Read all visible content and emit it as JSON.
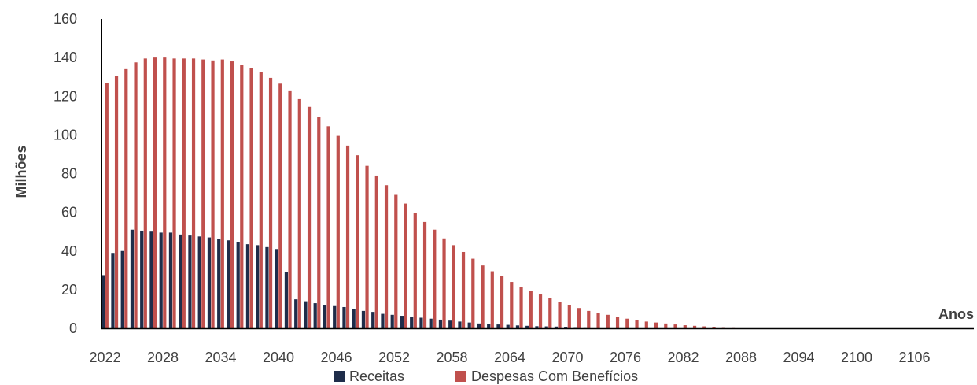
{
  "chart_data": {
    "type": "bar",
    "xlabel": "Anos",
    "ylabel": "Milhões",
    "ylim": [
      0,
      160
    ],
    "yticks": [
      0,
      20,
      40,
      60,
      80,
      100,
      120,
      140,
      160
    ],
    "x_tick_labels": [
      "2022",
      "2028",
      "2034",
      "2040",
      "2046",
      "2052",
      "2058",
      "2064",
      "2070",
      "2076",
      "2082",
      "2088",
      "2094",
      "2100",
      "2106"
    ],
    "categories": [
      2022,
      2023,
      2024,
      2025,
      2026,
      2027,
      2028,
      2029,
      2030,
      2031,
      2032,
      2033,
      2034,
      2035,
      2036,
      2037,
      2038,
      2039,
      2040,
      2041,
      2042,
      2043,
      2044,
      2045,
      2046,
      2047,
      2048,
      2049,
      2050,
      2051,
      2052,
      2053,
      2054,
      2055,
      2056,
      2057,
      2058,
      2059,
      2060,
      2061,
      2062,
      2063,
      2064,
      2065,
      2066,
      2067,
      2068,
      2069,
      2070,
      2071,
      2072,
      2073,
      2074,
      2075,
      2076,
      2077,
      2078,
      2079,
      2080,
      2081,
      2082,
      2083,
      2084,
      2085,
      2086,
      2087,
      2088,
      2089,
      2090,
      2091,
      2092,
      2093,
      2094,
      2095,
      2096,
      2097,
      2098,
      2099,
      2100,
      2101,
      2102,
      2103,
      2104,
      2105,
      2106,
      2107,
      2108,
      2109,
      2110,
      2111
    ],
    "series": [
      {
        "name": "Receitas",
        "color": "#1f2d4a",
        "values": [
          27.5,
          39,
          40,
          51,
          50.5,
          50,
          49.5,
          49.5,
          48.5,
          48,
          47.5,
          47,
          46,
          45.5,
          44.5,
          43.5,
          43,
          42,
          41,
          29,
          15,
          14,
          13,
          12,
          11.5,
          11,
          10,
          9,
          8.5,
          7.5,
          7,
          6.5,
          6,
          5.5,
          5,
          4.5,
          4,
          3.5,
          3,
          2.5,
          2.2,
          2,
          1.8,
          1.5,
          1.3,
          1.1,
          1,
          0.9,
          0.8,
          0.6,
          0.5,
          0.4,
          0.3,
          0.3,
          0.2,
          0.2,
          0.1,
          0.1,
          0.1,
          0.1,
          0.05,
          0.05,
          0.05,
          0,
          0,
          0,
          0,
          0,
          0,
          0,
          0,
          0,
          0,
          0,
          0,
          0,
          0,
          0,
          0,
          0,
          0,
          0,
          0,
          0,
          0,
          0,
          0,
          0,
          0,
          0
        ]
      },
      {
        "name": "Despesas Com Benefícios",
        "color": "#c0504d",
        "values": [
          127,
          130.5,
          134,
          137.5,
          139.5,
          140,
          140,
          139.5,
          139.5,
          139.5,
          139,
          138.5,
          139,
          138,
          136,
          134.5,
          132.5,
          129.5,
          126.5,
          123,
          118.5,
          114.5,
          109.5,
          104.5,
          99.5,
          94.5,
          89.5,
          84,
          79,
          74,
          69,
          64.5,
          59.5,
          55,
          51,
          46.5,
          43,
          39.5,
          36,
          32.5,
          29.5,
          27,
          24,
          21.5,
          19.5,
          17.5,
          15.5,
          13.5,
          12,
          10.5,
          9,
          8,
          7,
          6,
          5,
          4.2,
          3.5,
          3,
          2.5,
          2,
          1.6,
          1.3,
          1,
          0.8,
          0.6,
          0.5,
          0.4,
          0.3,
          0.2,
          0.2,
          0.1,
          0.1,
          0.1,
          0.1,
          0.1,
          0,
          0,
          0,
          0,
          0,
          0,
          0,
          0,
          0,
          0,
          0,
          0,
          0,
          0,
          0
        ]
      }
    ],
    "legend_position": "bottom",
    "grid": false
  }
}
